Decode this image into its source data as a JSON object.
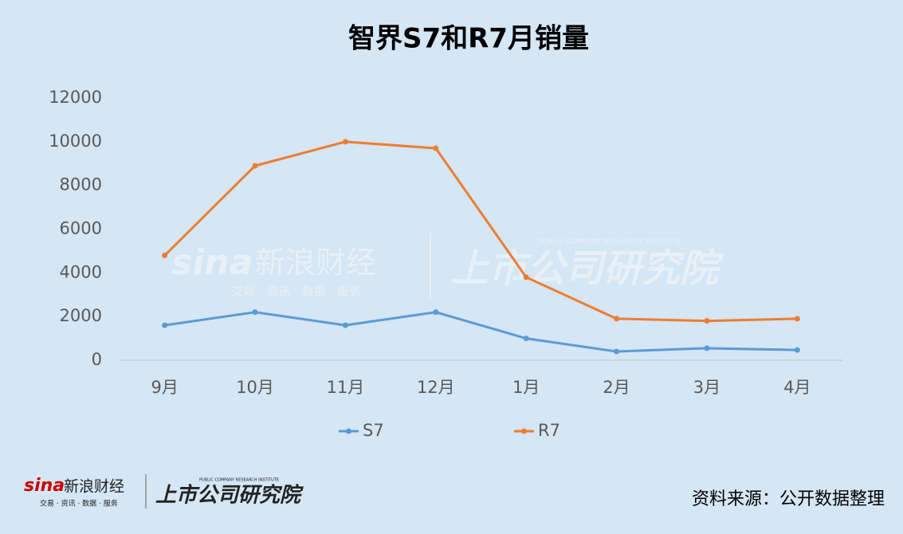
{
  "chart_data": {
    "type": "line",
    "title": "智界S7和R7月销量",
    "categories": [
      "9月",
      "10月",
      "11月",
      "12月",
      "1月",
      "2月",
      "3月",
      "4月"
    ],
    "series": [
      {
        "name": "S7",
        "color": "#5b9bd5",
        "values": [
          1600,
          2200,
          1600,
          2200,
          1000,
          400,
          550,
          470
        ]
      },
      {
        "name": "R7",
        "color": "#ed7d31",
        "values": [
          4800,
          8900,
          10000,
          9700,
          3800,
          1900,
          1800,
          1900
        ]
      }
    ],
    "ylim": [
      0,
      12000
    ],
    "yticks": [
      0,
      2000,
      4000,
      6000,
      8000,
      10000,
      12000
    ],
    "grid": false,
    "legend": "bottom",
    "source": "资料来源：公开数据整理"
  },
  "branding": {
    "sina": "sina",
    "sina_name": "新浪财经",
    "sina_tagline": "交易 · 资讯 · 数据 · 服务",
    "institute": "上市公司研究院",
    "institute_en": "PUBLIC COMPANY RESEARCH INSTITUTE"
  }
}
